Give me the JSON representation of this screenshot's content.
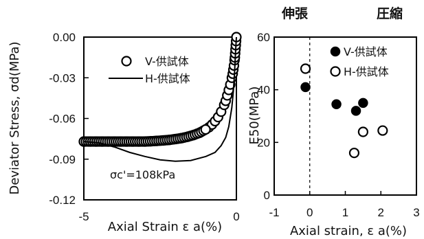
{
  "chart_data": [
    {
      "type": "scatter",
      "xlabel": "Axial Strain ε a(%)",
      "ylabel": "Deviator Stress, σd(MPa)",
      "xlim": [
        -5,
        0
      ],
      "ylim": [
        -0.12,
        0.0
      ],
      "x_ticks": [
        "-5",
        "0"
      ],
      "y_ticks": [
        "0.00",
        "-0.03",
        "-0.06",
        "-0.09",
        "-0.12"
      ],
      "legend_position": "top-right",
      "annotation": "σc'=108kPa",
      "series": [
        {
          "name": "V-供試体",
          "marker": "open-circle",
          "x": [
            -5.0,
            -4.8,
            -4.6,
            -4.4,
            -4.2,
            -4.0,
            -3.8,
            -3.6,
            -3.4,
            -3.2,
            -3.0,
            -2.8,
            -2.6,
            -2.4,
            -2.2,
            -2.0,
            -1.8,
            -1.6,
            -1.4,
            -1.2,
            -1.0,
            -0.9,
            -0.8,
            -0.7,
            -0.6,
            -0.5,
            -0.4,
            -0.35,
            -0.3,
            -0.25,
            -0.2,
            -0.15,
            -0.12,
            -0.1,
            -0.08,
            -0.06,
            -0.05,
            -0.04,
            -0.03,
            -0.02,
            -0.01,
            0.0
          ],
          "y": [
            -0.077,
            -0.077,
            -0.077,
            -0.077,
            -0.077,
            -0.077,
            -0.077,
            -0.077,
            -0.077,
            -0.077,
            -0.077,
            -0.0768,
            -0.0765,
            -0.0762,
            -0.0758,
            -0.0752,
            -0.0745,
            -0.0735,
            -0.0722,
            -0.0705,
            -0.068,
            -0.0665,
            -0.0645,
            -0.062,
            -0.059,
            -0.055,
            -0.05,
            -0.047,
            -0.043,
            -0.039,
            -0.035,
            -0.03,
            -0.027,
            -0.024,
            -0.021,
            -0.017,
            -0.015,
            -0.012,
            -0.009,
            -0.006,
            -0.003,
            0.0
          ]
        },
        {
          "name": "H-供試体",
          "marker": "line",
          "x": [
            -5.0,
            -4.5,
            -4.0,
            -3.5,
            -3.0,
            -2.5,
            -2.0,
            -1.5,
            -1.0,
            -0.7,
            -0.5,
            -0.35,
            -0.25,
            -0.15,
            -0.1,
            -0.06,
            -0.03,
            0.0
          ],
          "y": [
            -0.077,
            -0.078,
            -0.081,
            -0.085,
            -0.088,
            -0.0905,
            -0.0915,
            -0.091,
            -0.088,
            -0.085,
            -0.08,
            -0.074,
            -0.066,
            -0.052,
            -0.04,
            -0.026,
            -0.012,
            0.0
          ]
        }
      ]
    },
    {
      "type": "scatter",
      "xlabel": "Axial strain, ε a(%)",
      "ylabel": "E50(MPa)",
      "xlim": [
        -1,
        3
      ],
      "ylim": [
        0,
        60
      ],
      "x_ticks": [
        "-1",
        "0",
        "1",
        "2",
        "3"
      ],
      "y_ticks": [
        "0",
        "20",
        "40",
        "60"
      ],
      "legend_position": "top-right",
      "region_labels": [
        "伸張",
        "圧縮"
      ],
      "divider_x": 0,
      "series": [
        {
          "name": "V-供試体",
          "marker": "filled-circle",
          "x": [
            -0.12,
            0.75,
            1.3,
            1.5
          ],
          "y": [
            41,
            34.5,
            32,
            35
          ]
        },
        {
          "name": "H-供試体",
          "marker": "open-circle",
          "x": [
            -0.12,
            1.25,
            1.5,
            2.05
          ],
          "y": [
            48,
            16,
            24,
            24.5
          ]
        }
      ]
    }
  ]
}
